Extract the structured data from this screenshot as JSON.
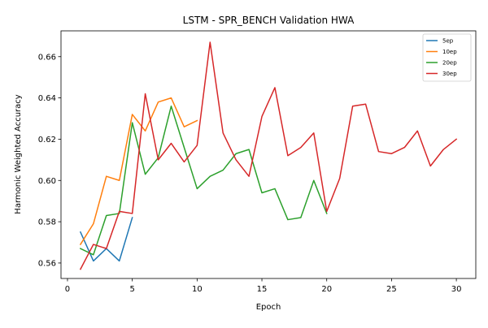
{
  "chart_data": {
    "type": "line",
    "title": "LSTM - SPR_BENCH Validation HWA",
    "xlabel": "Epoch",
    "ylabel": "Harmonic Weighted Accuracy",
    "xlim": [
      -0.5,
      31.5
    ],
    "ylim": [
      0.5525,
      0.6725
    ],
    "xticks": [
      0,
      5,
      10,
      15,
      20,
      25,
      30
    ],
    "yticks": [
      0.56,
      0.58,
      0.6,
      0.62,
      0.64,
      0.66
    ],
    "ytick_labels": [
      "0.56",
      "0.58",
      "0.60",
      "0.62",
      "0.64",
      "0.66"
    ],
    "grid": false,
    "legend_position": "top-right",
    "series": [
      {
        "name": "5ep",
        "color": "#1f77b4",
        "x": [
          1,
          2,
          3,
          4,
          5
        ],
        "y": [
          0.575,
          0.561,
          0.567,
          0.561,
          0.582
        ]
      },
      {
        "name": "10ep",
        "color": "#ff7f0e",
        "x": [
          1,
          2,
          3,
          4,
          5,
          6,
          7,
          8,
          9,
          10
        ],
        "y": [
          0.569,
          0.579,
          0.602,
          0.6,
          0.632,
          0.624,
          0.638,
          0.64,
          0.626,
          0.629
        ]
      },
      {
        "name": "20ep",
        "color": "#2ca02c",
        "x": [
          1,
          2,
          3,
          4,
          5,
          6,
          7,
          8,
          9,
          10,
          11,
          12,
          13,
          14,
          15,
          16,
          17,
          18,
          19,
          20
        ],
        "y": [
          0.567,
          0.564,
          0.583,
          0.584,
          0.628,
          0.603,
          0.611,
          0.636,
          0.616,
          0.596,
          0.602,
          0.605,
          0.613,
          0.615,
          0.594,
          0.596,
          0.581,
          0.582,
          0.6,
          0.584
        ]
      },
      {
        "name": "30ep",
        "color": "#d62728",
        "x": [
          1,
          2,
          3,
          4,
          5,
          6,
          7,
          8,
          9,
          10,
          11,
          12,
          13,
          14,
          15,
          16,
          17,
          18,
          19,
          20,
          21,
          22,
          23,
          24,
          25,
          26,
          27,
          28,
          29,
          30
        ],
        "y": [
          0.557,
          0.569,
          0.567,
          0.585,
          0.584,
          0.642,
          0.61,
          0.618,
          0.609,
          0.617,
          0.667,
          0.623,
          0.61,
          0.602,
          0.631,
          0.645,
          0.612,
          0.616,
          0.623,
          0.585,
          0.601,
          0.636,
          0.637,
          0.614,
          0.613,
          0.616,
          0.624,
          0.607,
          0.615,
          0.62
        ]
      }
    ]
  }
}
